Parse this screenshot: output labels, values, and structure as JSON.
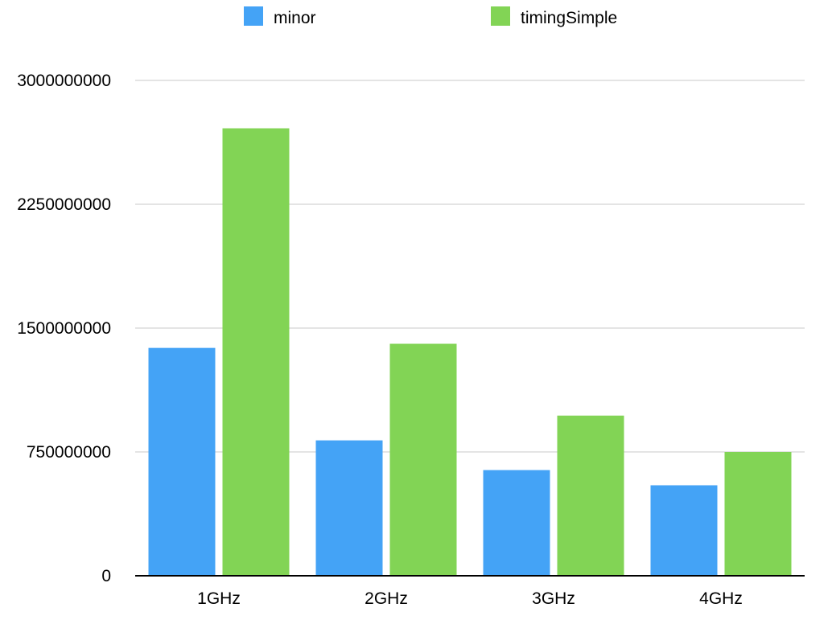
{
  "chart_data": {
    "type": "bar",
    "categories": [
      "1GHz",
      "2GHz",
      "3GHz",
      "4GHz"
    ],
    "series": [
      {
        "name": "minor",
        "color": "#44a3f6",
        "values": [
          1380000000,
          820000000,
          640000000,
          548000000
        ]
      },
      {
        "name": "timingSimple",
        "color": "#82d455",
        "values": [
          2710000000,
          1405000000,
          970000000,
          750000000
        ]
      }
    ],
    "y_ticks": [
      "0",
      "750000000",
      "1500000000",
      "2250000000",
      "3000000000"
    ],
    "ylim": [
      0,
      3000000000
    ],
    "grid": true,
    "legend_position": "top"
  }
}
